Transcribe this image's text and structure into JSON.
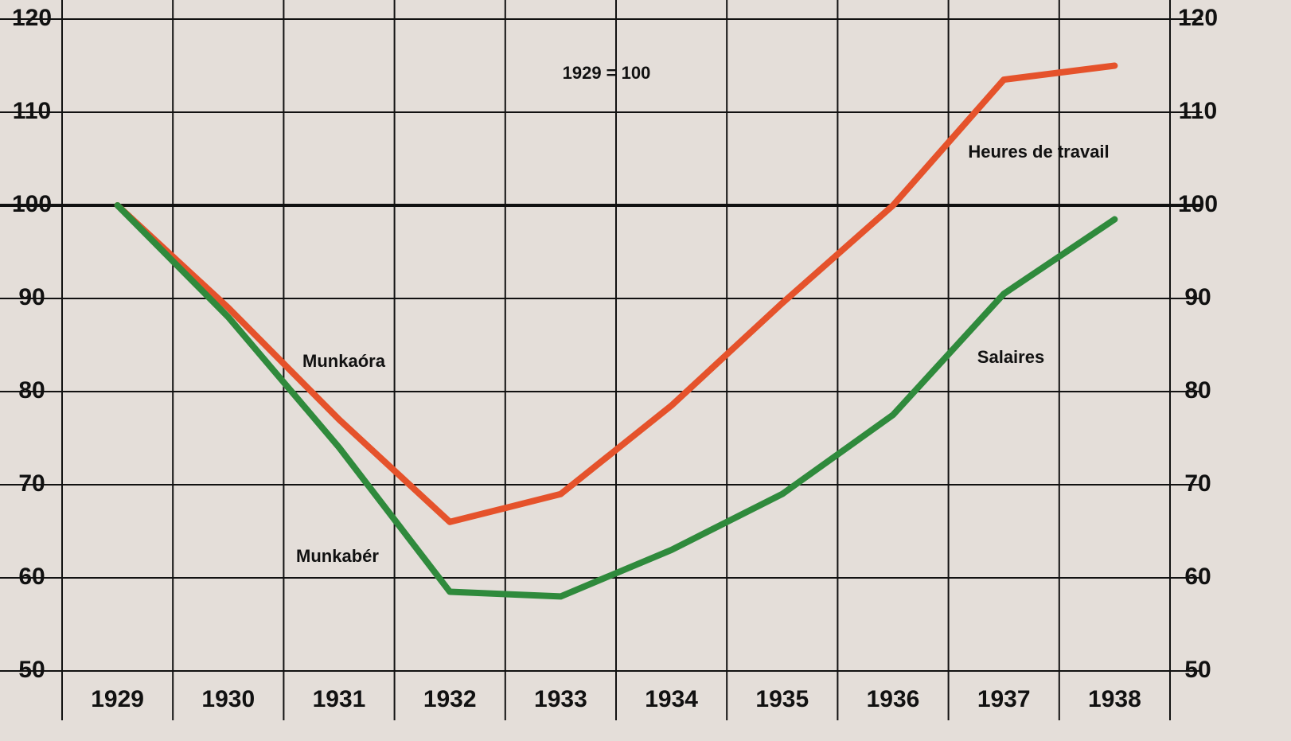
{
  "chart_data": {
    "type": "line",
    "categories": [
      "1929",
      "1930",
      "1931",
      "1932",
      "1933",
      "1934",
      "1935",
      "1936",
      "1937",
      "1938"
    ],
    "series": [
      {
        "name": "Munkaóra",
        "color": "#e5522b",
        "values": [
          100,
          89,
          77,
          66,
          69,
          78.5,
          89.5,
          100,
          113.5,
          115
        ]
      },
      {
        "name": "Munkabér",
        "color": "#2f8a3c",
        "values": [
          100,
          88,
          74,
          58.5,
          58,
          63,
          69,
          77.5,
          90.5,
          98.5
        ]
      }
    ],
    "annotations": [
      "1929 = 100",
      "Heures de travail",
      "Salaires"
    ],
    "ylim": [
      50,
      120
    ],
    "yticks": [
      50,
      60,
      70,
      80,
      90,
      100,
      110,
      120
    ],
    "grid": true
  }
}
